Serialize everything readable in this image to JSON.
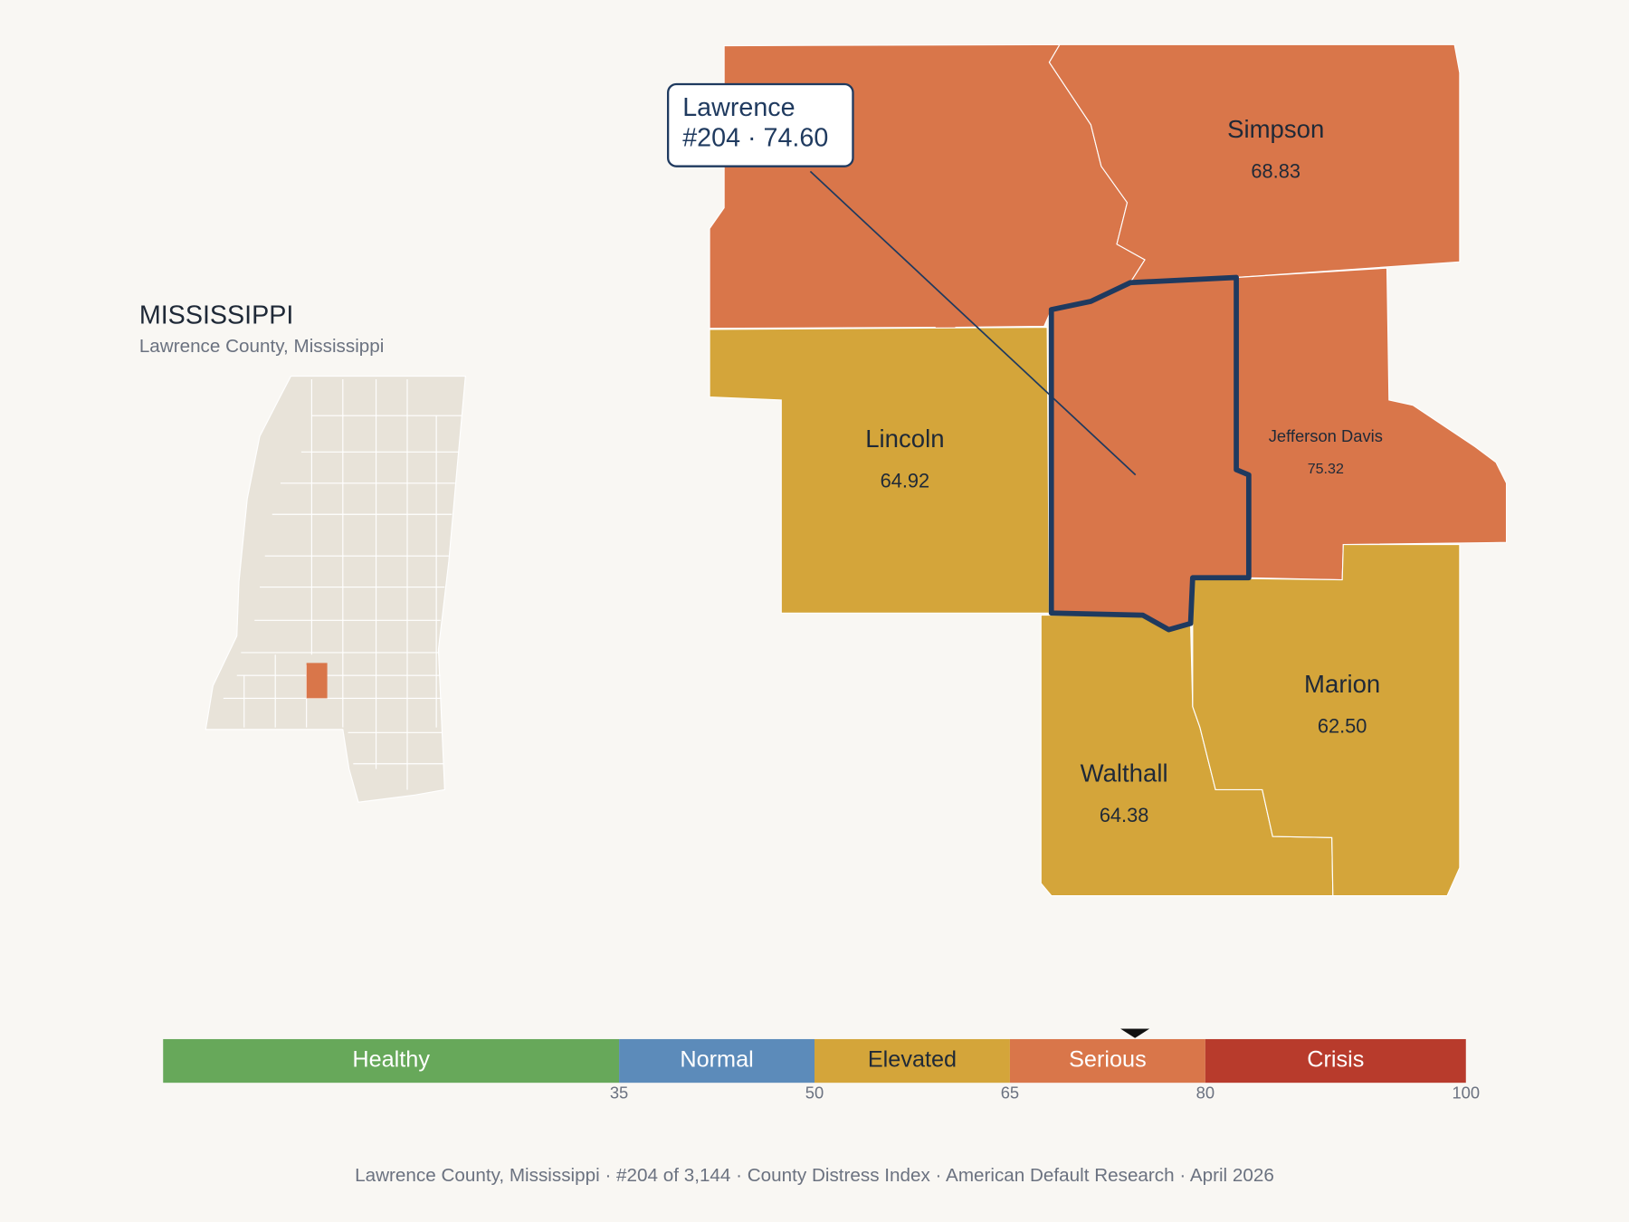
{
  "inset": {
    "title": "MISSISSIPPI",
    "subtitle": "Lawrence County, Mississippi"
  },
  "counties": [
    {
      "name": "Simpson",
      "value": 68.83
    },
    {
      "name": "Lincoln",
      "value": 64.92
    },
    {
      "name": "Lawrence",
      "value": 74.6,
      "value_label": "74.60",
      "rank_label": "#204"
    },
    {
      "name": "Jefferson Davis",
      "value": 75.32
    },
    {
      "name": "Walthall",
      "value": 64.38
    },
    {
      "name": "Marion",
      "value": 62.5,
      "value_label": "62.50"
    }
  ],
  "callout": {
    "line1": "Lawrence",
    "line2": "#204 · 74.60"
  },
  "legend": {
    "xlim": [
      0,
      100
    ],
    "ticks": [
      35,
      50,
      65,
      80,
      100
    ],
    "bands": [
      {
        "label": "Healthy",
        "color": "#67a85a",
        "text_color": "#ffffff"
      },
      {
        "label": "Normal",
        "color": "#5c8bba",
        "text_color": "#ffffff"
      },
      {
        "label": "Elevated",
        "color": "#d4a53a",
        "text_color": "#1f2937"
      },
      {
        "label": "Serious",
        "color": "#d9764a",
        "text_color": "#ffffff"
      },
      {
        "label": "Crisis",
        "color": "#b83b2c",
        "text_color": "#ffffff"
      }
    ]
  },
  "footer": "Lawrence County, Mississippi  ·  #204 of 3,144  ·  County Distress Index  ·  American Default Research  ·  April 2026"
}
